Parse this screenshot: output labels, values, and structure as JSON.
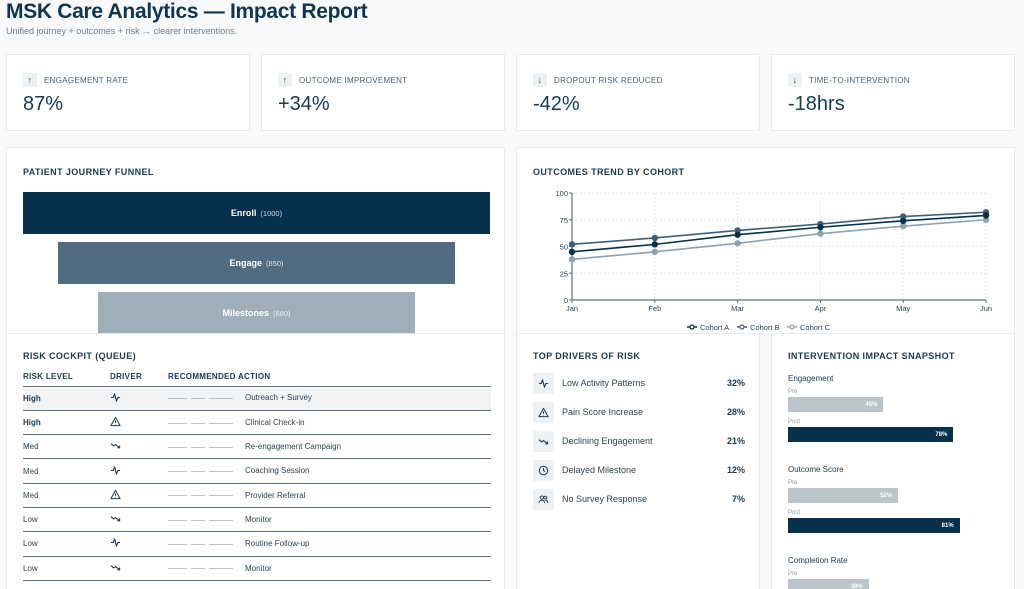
{
  "header": {
    "title": "MSK Care Analytics — Impact Report",
    "subtitle": "Unified journey + outcomes + risk → clearer interventions."
  },
  "kpis": [
    {
      "icon": "arrow-up-icon",
      "glyph": "↑",
      "label": "ENGAGEMENT RATE",
      "value": "87%"
    },
    {
      "icon": "arrow-up-icon",
      "glyph": "↑",
      "label": "OUTCOME IMPROVEMENT",
      "value": "+34%"
    },
    {
      "icon": "arrow-down-icon",
      "glyph": "↓",
      "label": "DROPOUT RISK REDUCED",
      "value": "-42%"
    },
    {
      "icon": "arrow-down-icon",
      "glyph": "↓",
      "label": "TIME-TO-INTERVENTION",
      "value": "-18hrs"
    }
  ],
  "funnel": {
    "title": "PATIENT JOURNEY FUNNEL",
    "stages": [
      {
        "label": "Enroll",
        "count": "(1000)",
        "value": 1000,
        "color": "#06304b"
      },
      {
        "label": "Engage",
        "count": "(850)",
        "value": 850,
        "color": "#516c80"
      },
      {
        "label": "Milestones",
        "count": "(680)",
        "value": 680,
        "color": "#9eafb9"
      }
    ]
  },
  "chart_data": {
    "type": "line",
    "title": "OUTCOMES TREND BY COHORT",
    "categories": [
      "Jan",
      "Feb",
      "Mar",
      "Apr",
      "May",
      "Jun"
    ],
    "yticks": [
      "0",
      "25",
      "50",
      "75",
      "100"
    ],
    "ylim": [
      0,
      100
    ],
    "grid": true,
    "legend_position": "bottom-center",
    "series": [
      {
        "name": "Cohort A",
        "color": "#06304b",
        "values": [
          45,
          52,
          61,
          68,
          74,
          79
        ]
      },
      {
        "name": "Cohort B",
        "color": "#3f5f74",
        "values": [
          52,
          58,
          65,
          71,
          78,
          82
        ]
      },
      {
        "name": "Cohort C",
        "color": "#8fa1ad",
        "values": [
          38,
          45,
          53,
          62,
          69,
          75
        ]
      }
    ]
  },
  "risk": {
    "title": "RISK COCKPIT (QUEUE)",
    "columns": [
      "RISK LEVEL",
      "DRIVER",
      "RECOMMENDED ACTION"
    ],
    "rows": [
      {
        "level": "High",
        "driver": "activity-icon",
        "action": "Outreach + Survey"
      },
      {
        "level": "High",
        "driver": "warning-triangle-icon",
        "action": "Clinical Check-in"
      },
      {
        "level": "Med",
        "driver": "trending-down-icon",
        "action": "Re-engagement Campaign"
      },
      {
        "level": "Med",
        "driver": "activity-icon",
        "action": "Coaching Session"
      },
      {
        "level": "Med",
        "driver": "warning-triangle-icon",
        "action": "Provider Referral"
      },
      {
        "level": "Low",
        "driver": "trending-down-icon",
        "action": "Monitor"
      },
      {
        "level": "Low",
        "driver": "activity-icon",
        "action": "Routine Follow-up"
      },
      {
        "level": "Low",
        "driver": "trending-down-icon",
        "action": "Monitor"
      }
    ]
  },
  "drivers": {
    "title": "TOP DRIVERS OF RISK",
    "items": [
      {
        "icon": "activity-icon",
        "label": "Low Activity Patterns",
        "pct": "32%"
      },
      {
        "icon": "warning-triangle-icon",
        "label": "Pain Score Increase",
        "pct": "28%"
      },
      {
        "icon": "trending-down-icon",
        "label": "Declining Engagement",
        "pct": "21%"
      },
      {
        "icon": "clock-icon",
        "label": "Delayed Milestone",
        "pct": "12%"
      },
      {
        "icon": "users-icon",
        "label": "No Survey Response",
        "pct": "7%"
      }
    ]
  },
  "snapshot": {
    "title": "INTERVENTION IMPACT SNAPSHOT",
    "pre_label": "Pre",
    "post_label": "Post",
    "metrics": [
      {
        "label": "Engagement",
        "pre": 45,
        "post": 78,
        "pre_text": "45%",
        "post_text": "78%"
      },
      {
        "label": "Outcome Score",
        "pre": 52,
        "post": 81,
        "pre_text": "52%",
        "post_text": "81%"
      },
      {
        "label": "Completion Rate",
        "pre": 38,
        "pre_text": "38%"
      }
    ]
  }
}
